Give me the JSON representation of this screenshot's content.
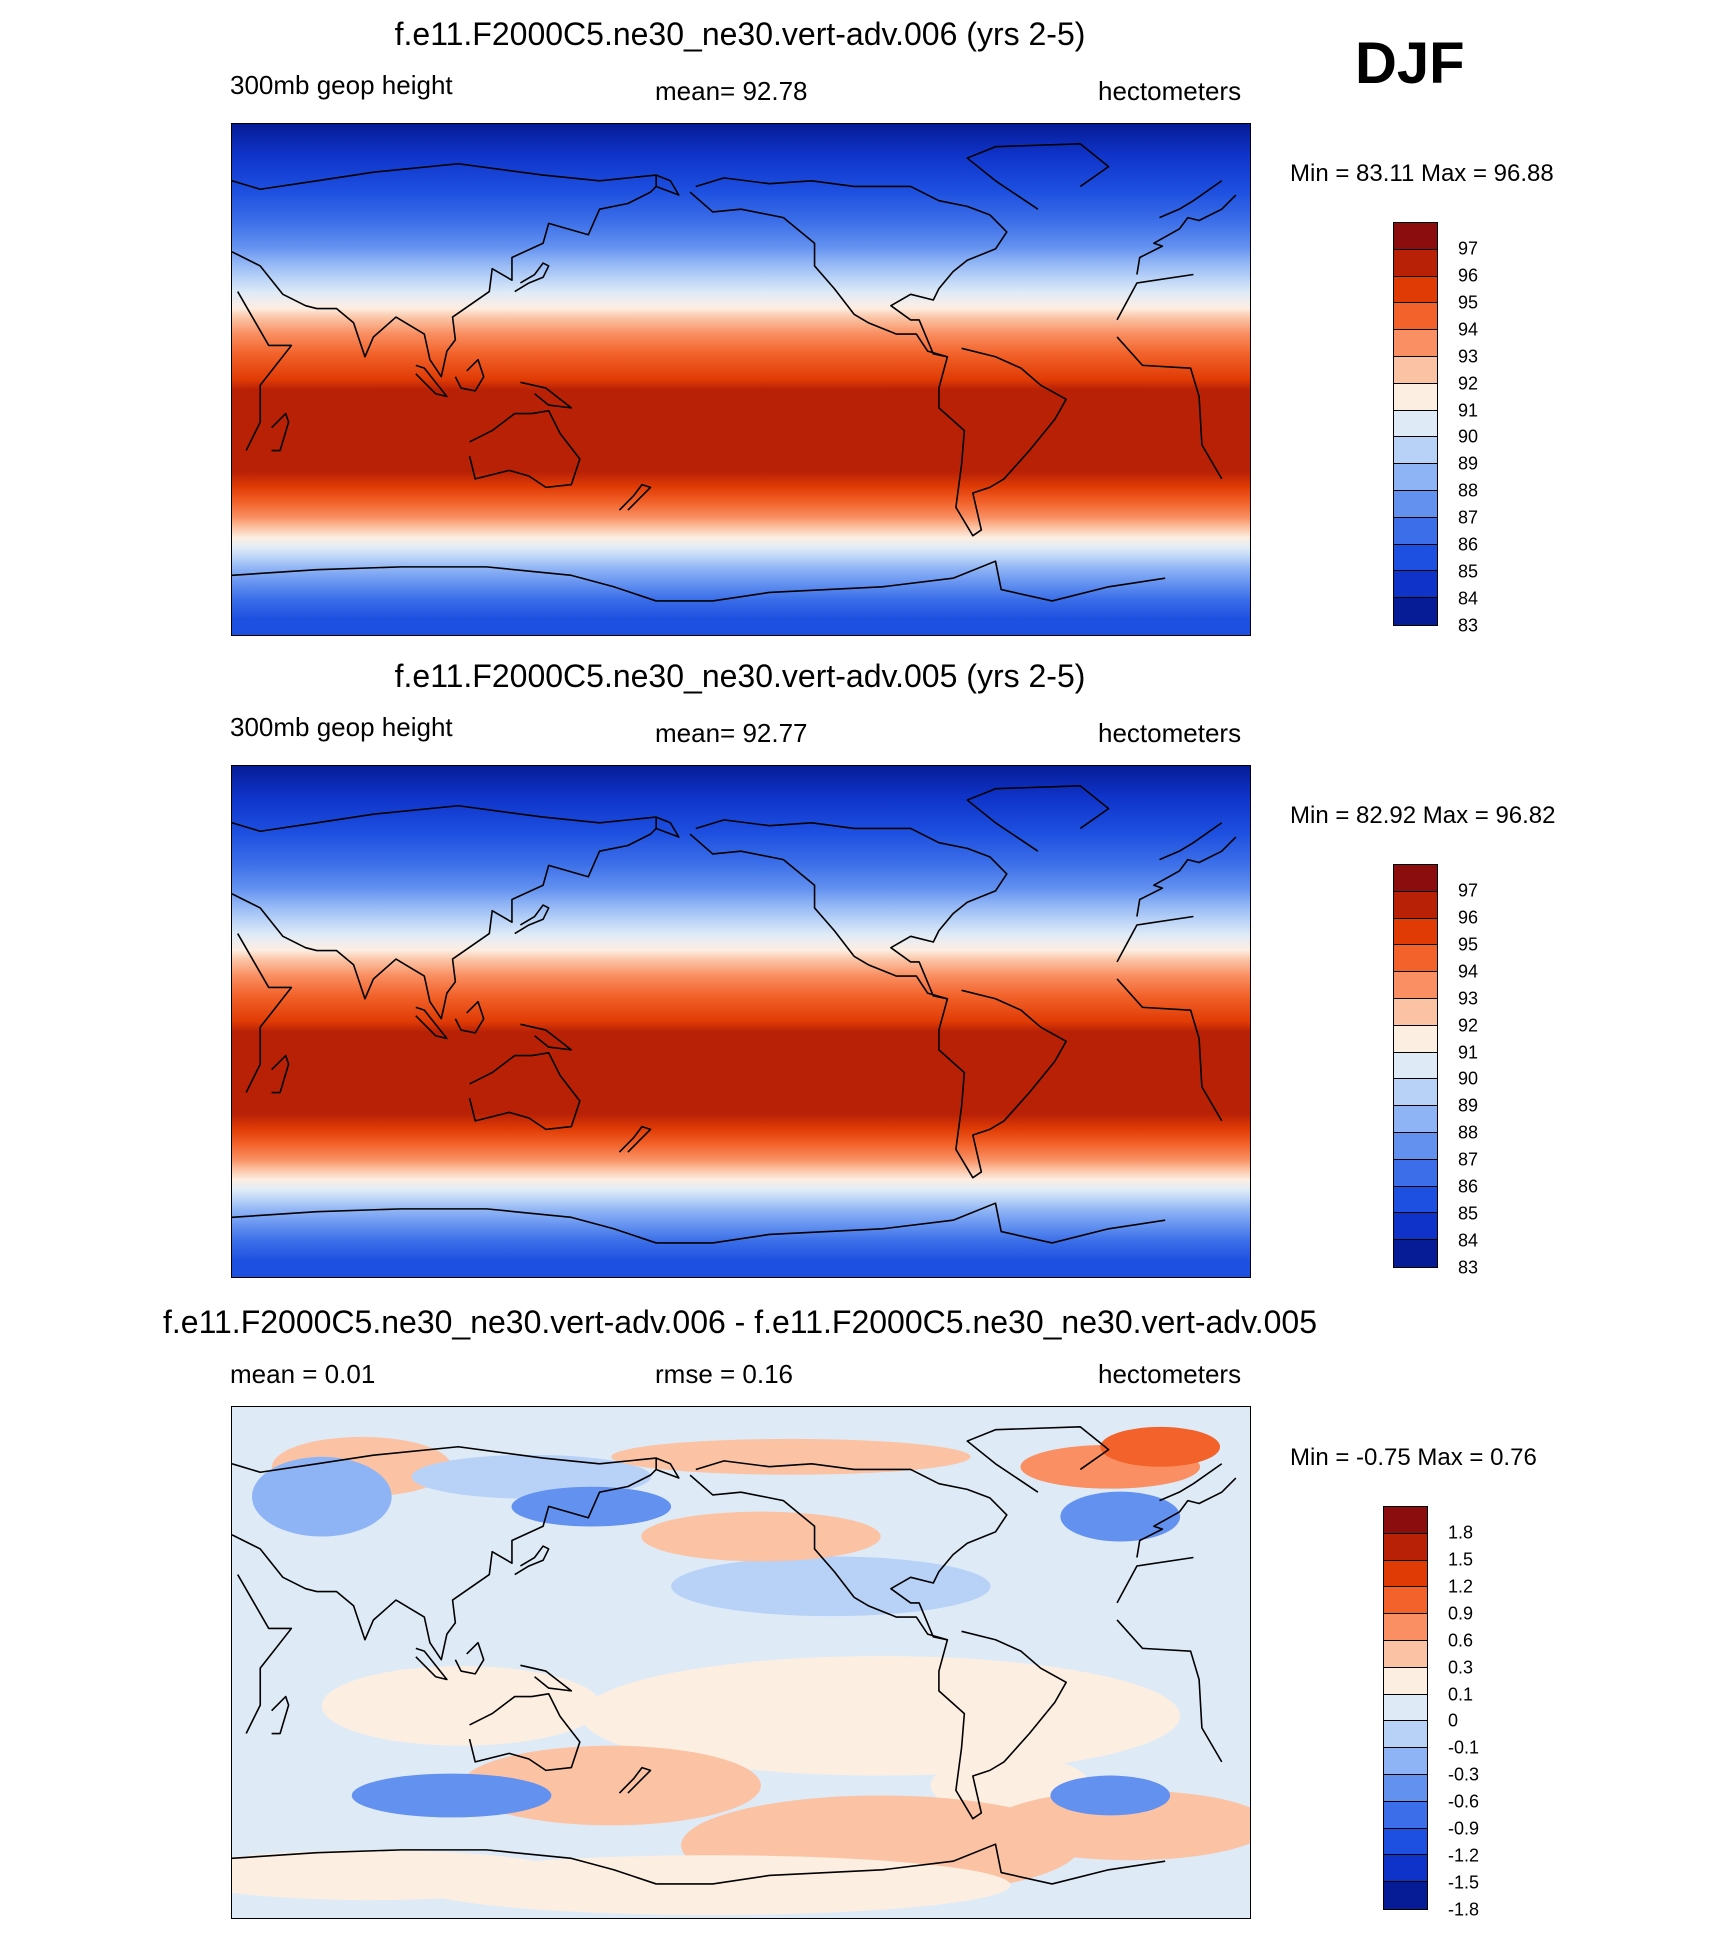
{
  "season": "DJF",
  "panels": [
    {
      "title": "f.e11.F2000C5.ne30_ne30.vert-adv.006 (yrs 2-5)",
      "left_label": "300mb geop height",
      "center_label": "mean=  92.78",
      "right_label": "hectometers",
      "minmax": "Min =  83.11 Max =  96.88",
      "colorbar": {
        "colors": [
          "#8c0d0d",
          "#b82106",
          "#e03b05",
          "#f2622a",
          "#f98f62",
          "#fbc3a4",
          "#fdeee2",
          "#deebf7",
          "#b7d1f7",
          "#8fb4f5",
          "#6391f0",
          "#3b6ee8",
          "#1d4fe0",
          "#0f33c9",
          "#061c96"
        ],
        "labels": [
          "97",
          "96",
          "95",
          "94",
          "93",
          "92",
          "91",
          "90",
          "89",
          "88",
          "87",
          "86",
          "85",
          "84",
          "83"
        ]
      },
      "field": "abs_a"
    },
    {
      "title": "f.e11.F2000C5.ne30_ne30.vert-adv.005 (yrs 2-5)",
      "left_label": "300mb geop height",
      "center_label": "mean=  92.77",
      "right_label": "hectometers",
      "minmax": "Min =  82.92 Max =  96.82",
      "colorbar": {
        "colors": [
          "#8c0d0d",
          "#b82106",
          "#e03b05",
          "#f2622a",
          "#f98f62",
          "#fbc3a4",
          "#fdeee2",
          "#deebf7",
          "#b7d1f7",
          "#8fb4f5",
          "#6391f0",
          "#3b6ee8",
          "#1d4fe0",
          "#0f33c9",
          "#061c96"
        ],
        "labels": [
          "97",
          "96",
          "95",
          "94",
          "93",
          "92",
          "91",
          "90",
          "89",
          "88",
          "87",
          "86",
          "85",
          "84",
          "83"
        ]
      },
      "field": "abs_b"
    },
    {
      "title": "f.e11.F2000C5.ne30_ne30.vert-adv.006 - f.e11.F2000C5.ne30_ne30.vert-adv.005",
      "left_label": "mean =   0.01",
      "center_label": "rmse =   0.16",
      "right_label": "hectometers",
      "minmax": "Min =  -0.75 Max =   0.76",
      "colorbar": {
        "colors": [
          "#8c0d0d",
          "#b82106",
          "#e03b05",
          "#f2622a",
          "#f98f62",
          "#fbc3a4",
          "#fdeee2",
          "#deebf7",
          "#b7d1f7",
          "#8fb4f5",
          "#6391f0",
          "#3b6ee8",
          "#1d4fe0",
          "#0f33c9",
          "#061c96"
        ],
        "labels": [
          "1.8",
          "1.5",
          "1.2",
          "0.9",
          "0.6",
          "0.3",
          "0.1",
          "0",
          "-0.1",
          "-0.3",
          "-0.6",
          "-0.9",
          "-1.2",
          "-1.5",
          "-1.8"
        ]
      },
      "field": "diff"
    }
  ]
}
